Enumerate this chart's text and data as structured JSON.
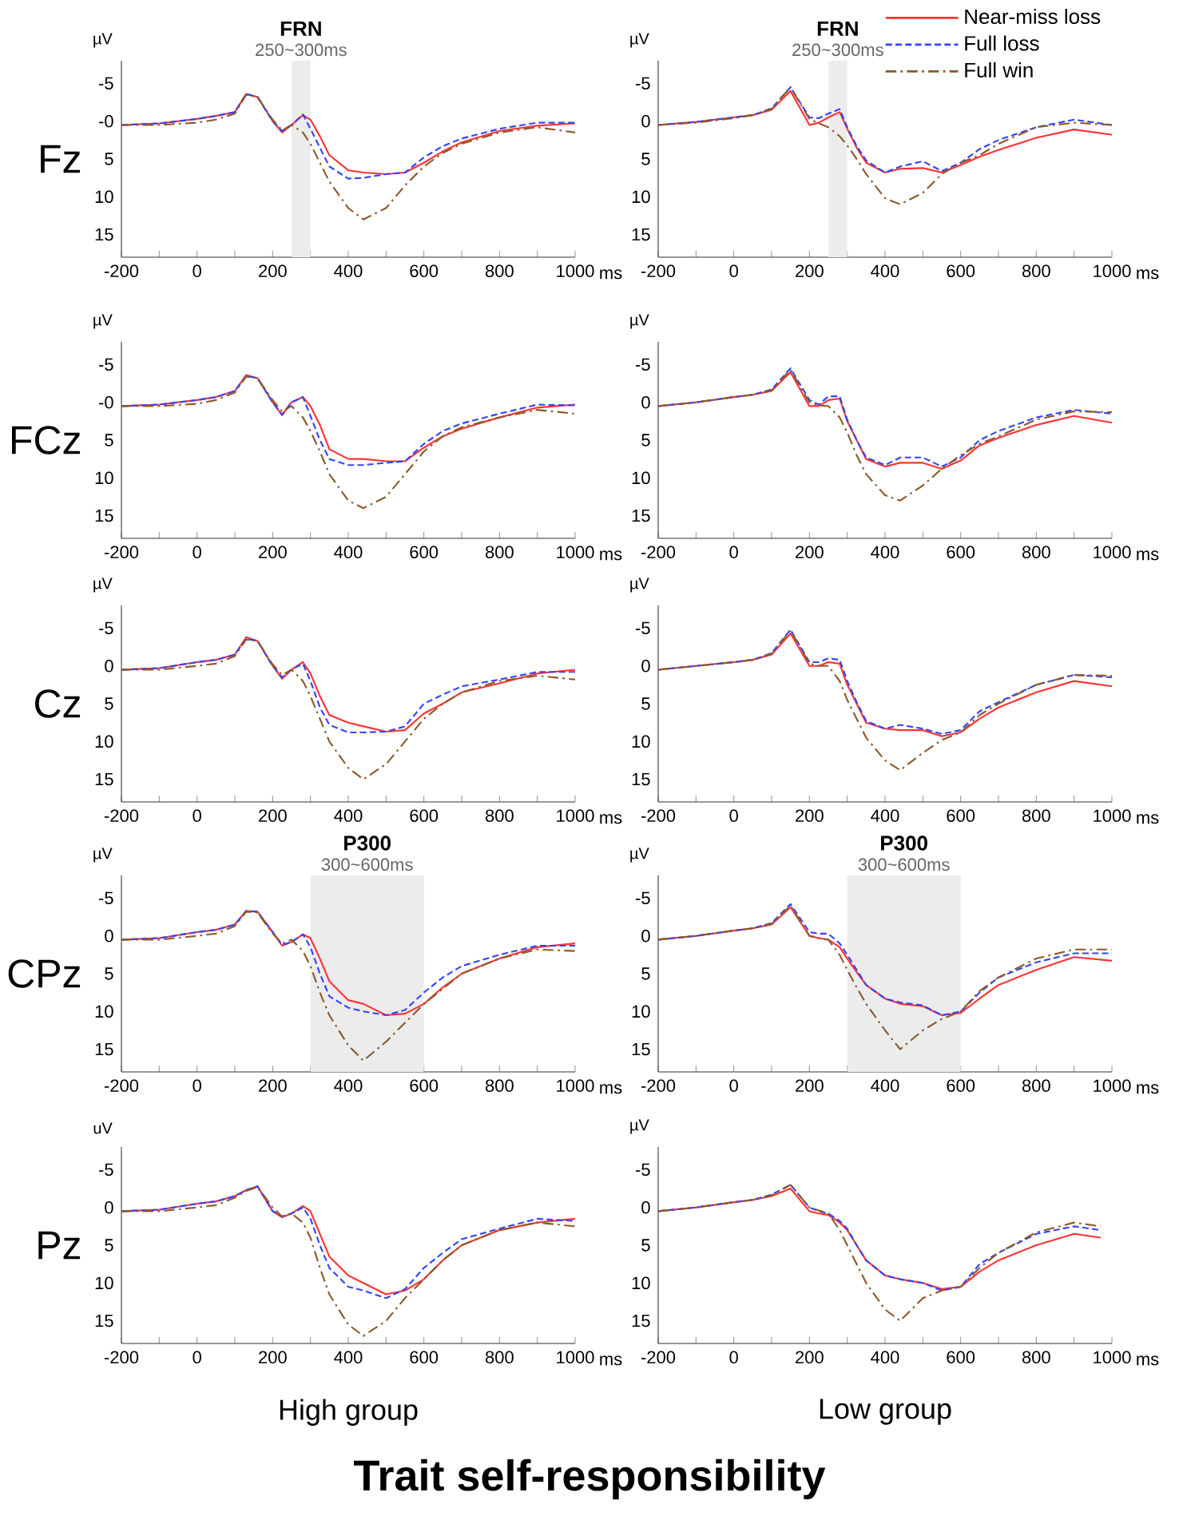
{
  "chart_data": [
    {
      "type": "line",
      "title": "Fz",
      "subtitle": "250~300ms",
      "xlabel": "ms",
      "ylabel": "µV",
      "xlim": [
        -200,
        1000
      ],
      "ylim": [
        18,
        -8
      ],
      "xticks": [
        -200,
        {
          "value": -100,
          "label": null
        },
        0,
        {
          "value": 100,
          "label": null
        },
        200,
        {
          "value": 300,
          "label": null
        },
        400,
        {
          "value": 500,
          "label": null
        },
        600,
        {
          "value": 700,
          "label": null
        },
        800,
        {
          "value": 900,
          "label": null
        },
        1000
      ],
      "yticks": [
        -5,
        {
          "value": 0,
          "label": "-0"
        },
        5,
        10,
        15
      ],
      "bands": [
        {
          "axis": "x",
          "from": 250,
          "to": 300,
          "label": "FRN",
          "color": "#ececec"
        }
      ],
      "x": [
        -200,
        -100,
        0,
        50,
        100,
        130,
        160,
        200,
        225,
        250,
        280,
        300,
        325,
        350,
        400,
        440,
        500,
        550,
        600,
        650,
        700,
        800,
        900,
        1000
      ],
      "series": [
        {
          "color": "#ff3333",
          "line_style": "solid",
          "values": [
            0.5,
            0.3,
            -0.3,
            -0.7,
            -1.2,
            -3.6,
            -3.2,
            0,
            1.5,
            0.5,
            -0.8,
            -0.2,
            2,
            4.5,
            6.5,
            6.8,
            7,
            6.8,
            5.5,
            4,
            2.8,
            1.3,
            0.6,
            0.3
          ]
        },
        {
          "color": "#3344ff",
          "line_style": "dashed",
          "values": [
            0.5,
            0.3,
            -0.3,
            -0.7,
            -1.2,
            -3.6,
            -3.2,
            0,
            1.3,
            0.5,
            -0.9,
            1,
            3.5,
            6,
            7.6,
            7.5,
            7,
            6.8,
            4.8,
            3.3,
            2.3,
            1,
            0.2,
            0.2
          ]
        },
        {
          "color": "#8b5a2b",
          "line_style": "dashdot",
          "values": [
            0.5,
            0.5,
            0.2,
            -0.2,
            -1,
            -3.5,
            -3.2,
            -0.2,
            1.2,
            0.5,
            1.5,
            3,
            5.5,
            8,
            11.5,
            13,
            11.5,
            8.5,
            6,
            4.2,
            3,
            1.5,
            0.8,
            1.5
          ]
        }
      ]
    },
    {
      "type": "line",
      "subtitle": "250~300ms",
      "xlabel": "ms",
      "ylabel": "µV",
      "xlim": [
        -200,
        1000
      ],
      "ylim": [
        18,
        -8
      ],
      "legend": "top right",
      "xticks": [
        -200,
        {
          "value": -100,
          "label": null
        },
        0,
        {
          "value": 100,
          "label": null
        },
        200,
        {
          "value": 300,
          "label": null
        },
        400,
        {
          "value": 500,
          "label": null
        },
        600,
        {
          "value": 700,
          "label": null
        },
        800,
        {
          "value": 900,
          "label": null
        },
        1000
      ],
      "yticks": [
        -5,
        0,
        5,
        10,
        15
      ],
      "bands": [
        {
          "axis": "x",
          "from": 250,
          "to": 300,
          "label": "FRN",
          "color": "#ececec"
        }
      ],
      "x": [
        -200,
        -100,
        0,
        50,
        100,
        150,
        200,
        225,
        250,
        280,
        300,
        325,
        350,
        400,
        440,
        500,
        550,
        600,
        650,
        700,
        800,
        900,
        1000
      ],
      "series": [
        {
          "name": "Near-miss loss",
          "color": "#ff3333",
          "line_style": "solid",
          "values": [
            0.5,
            0.1,
            -0.5,
            -0.8,
            -1.5,
            -4,
            0.5,
            0.2,
            -0.5,
            -1.2,
            1,
            3.5,
            5.5,
            6.8,
            6.3,
            6.2,
            6.8,
            5.8,
            4.7,
            3.8,
            2.2,
            1.1,
            1.8
          ]
        },
        {
          "name": "Full loss",
          "color": "#3344ff",
          "line_style": "dashed",
          "values": [
            0.5,
            0.1,
            -0.5,
            -0.8,
            -1.7,
            -4.5,
            -0.5,
            -0.4,
            -1,
            -1.6,
            0.8,
            3.3,
            5.2,
            6.8,
            6,
            5.3,
            6.6,
            5.5,
            3.7,
            2.5,
            0.8,
            -0.2,
            0.5
          ]
        },
        {
          "name": "Full win",
          "color": "#8b5a2b",
          "line_style": "dashdot",
          "values": [
            0.5,
            0.2,
            -0.4,
            -0.8,
            -1.6,
            -4.5,
            -0.3,
            0.3,
            0.8,
            2,
            3.2,
            5,
            7,
            10.2,
            11,
            9.5,
            7,
            5.5,
            4.5,
            3,
            0.8,
            0.2,
            0.5
          ]
        }
      ]
    },
    {
      "type": "line",
      "title": "FCz",
      "xlabel": "ms",
      "ylabel": "µV",
      "xlim": [
        -200,
        1000
      ],
      "ylim": [
        18,
        -8
      ],
      "xticks": [
        -200,
        {
          "value": -100,
          "label": null
        },
        0,
        {
          "value": 100,
          "label": null
        },
        200,
        {
          "value": 300,
          "label": null
        },
        400,
        {
          "value": 500,
          "label": null
        },
        600,
        {
          "value": 700,
          "label": null
        },
        800,
        {
          "value": 900,
          "label": null
        },
        1000
      ],
      "yticks": [
        -5,
        {
          "value": 0,
          "label": "-0"
        },
        5,
        10,
        15
      ],
      "x": [
        -200,
        -100,
        0,
        50,
        100,
        130,
        160,
        200,
        225,
        250,
        280,
        300,
        325,
        350,
        400,
        440,
        500,
        550,
        600,
        650,
        700,
        800,
        900,
        1000
      ],
      "series": [
        {
          "color": "#ff3333",
          "line_style": "solid",
          "values": [
            0.5,
            0.3,
            -0.3,
            -0.7,
            -1.5,
            -3.6,
            -3.2,
            0,
            1.7,
            0,
            -0.7,
            0.5,
            3,
            6.2,
            7.5,
            7.5,
            7.8,
            7.8,
            6,
            4.5,
            3.5,
            2,
            0.7,
            0.3
          ]
        },
        {
          "color": "#3344ff",
          "line_style": "dashed",
          "values": [
            0.5,
            0.3,
            -0.3,
            -0.7,
            -1.5,
            -3.5,
            -3.2,
            0,
            1.6,
            0,
            -0.7,
            1.8,
            5,
            7.5,
            8.3,
            8.3,
            8,
            7.8,
            5.5,
            3.8,
            2.8,
            1.5,
            0.3,
            0.4
          ]
        },
        {
          "color": "#8b5a2b",
          "line_style": "dashdot",
          "values": [
            0.5,
            0.5,
            0.2,
            -0.3,
            -1.3,
            -3.4,
            -3.2,
            -0.3,
            1.2,
            0.5,
            2,
            3.8,
            6.5,
            9.5,
            13,
            14,
            12.5,
            9.5,
            6.5,
            4.5,
            3.3,
            2,
            1,
            1.5
          ]
        }
      ]
    },
    {
      "type": "line",
      "xlabel": "ms",
      "ylabel": "µV",
      "xlim": [
        -200,
        1000
      ],
      "ylim": [
        18,
        -8
      ],
      "xticks": [
        -200,
        {
          "value": -100,
          "label": null
        },
        0,
        {
          "value": 100,
          "label": null
        },
        200,
        {
          "value": 300,
          "label": null
        },
        400,
        {
          "value": 500,
          "label": null
        },
        600,
        {
          "value": 700,
          "label": null
        },
        800,
        {
          "value": 900,
          "label": null
        },
        1000
      ],
      "yticks": [
        -5,
        0,
        5,
        10,
        15
      ],
      "x": [
        -200,
        -100,
        0,
        50,
        100,
        150,
        200,
        225,
        250,
        280,
        300,
        325,
        350,
        400,
        440,
        500,
        550,
        600,
        650,
        700,
        800,
        900,
        1000
      ],
      "series": [
        {
          "color": "#ff3333",
          "line_style": "solid",
          "values": [
            0.5,
            0,
            -0.7,
            -1,
            -1.5,
            -4,
            0.5,
            0.5,
            -0.3,
            -0.5,
            2.5,
            5,
            7.5,
            8.5,
            8,
            8,
            8.8,
            7.7,
            5.7,
            4.7,
            3,
            1.8,
            2.7
          ]
        },
        {
          "color": "#3344ff",
          "line_style": "dashed",
          "values": [
            0.5,
            0,
            -0.7,
            -1,
            -1.7,
            -4.5,
            -0.3,
            0.3,
            -0.8,
            -0.8,
            2.3,
            5,
            7.3,
            8.3,
            7.3,
            7.3,
            8.5,
            7.3,
            5,
            3.8,
            2,
            1,
            1.5
          ]
        },
        {
          "color": "#8b5a2b",
          "line_style": "dashdot",
          "values": [
            0.5,
            0,
            -0.7,
            -1,
            -1.6,
            -4.3,
            0,
            0.4,
            0.5,
            2,
            4,
            7,
            9.5,
            12.3,
            13,
            11,
            8.8,
            7,
            5.5,
            4.5,
            2.3,
            1.2,
            1.3
          ]
        }
      ]
    },
    {
      "type": "line",
      "title": "Cz",
      "xlabel": "ms",
      "ylabel": "µV",
      "xlim": [
        -200,
        1000
      ],
      "ylim": [
        18,
        -8
      ],
      "xticks": [
        -200,
        {
          "value": -100,
          "label": null
        },
        0,
        {
          "value": 100,
          "label": null
        },
        200,
        {
          "value": 300,
          "label": null
        },
        400,
        {
          "value": 500,
          "label": null
        },
        600,
        {
          "value": 700,
          "label": null
        },
        800,
        {
          "value": 900,
          "label": null
        },
        1000
      ],
      "yticks": [
        -5,
        0,
        5,
        10,
        15
      ],
      "x": [
        -200,
        -100,
        0,
        50,
        100,
        130,
        160,
        200,
        225,
        250,
        280,
        300,
        325,
        350,
        400,
        440,
        500,
        550,
        600,
        650,
        700,
        800,
        900,
        1000
      ],
      "series": [
        {
          "color": "#ff3333",
          "line_style": "solid",
          "values": [
            0.5,
            0.3,
            -0.5,
            -0.8,
            -1.5,
            -3.8,
            -3.3,
            0,
            1.7,
            0.5,
            -0.5,
            1,
            4,
            6.5,
            7.5,
            8,
            8.7,
            8.5,
            6.3,
            5,
            3.5,
            2.3,
            1,
            0.5
          ]
        },
        {
          "color": "#3344ff",
          "line_style": "dashed",
          "values": [
            0.5,
            0.3,
            -0.5,
            -0.8,
            -1.5,
            -3.6,
            -3.3,
            0,
            1.5,
            0.5,
            -0.3,
            2,
            5.5,
            7.8,
            8.8,
            8.8,
            8.7,
            8,
            5,
            3.8,
            2.7,
            1.8,
            0.8,
            0.8
          ]
        },
        {
          "color": "#8b5a2b",
          "line_style": "dashdot",
          "values": [
            0.5,
            0.5,
            0,
            -0.3,
            -1.3,
            -3.5,
            -3.3,
            -0.2,
            1.2,
            0.5,
            2,
            4,
            7,
            10,
            13.5,
            15,
            13,
            10,
            7,
            5,
            3.5,
            2,
            1.3,
            1.8
          ]
        }
      ]
    },
    {
      "type": "line",
      "xlabel": "ms",
      "ylabel": "µV",
      "xlim": [
        -200,
        1000
      ],
      "ylim": [
        18,
        -8
      ],
      "xticks": [
        -200,
        {
          "value": -100,
          "label": null
        },
        0,
        {
          "value": 100,
          "label": null
        },
        200,
        {
          "value": 300,
          "label": null
        },
        400,
        {
          "value": 500,
          "label": null
        },
        600,
        {
          "value": 700,
          "label": null
        },
        800,
        {
          "value": 900,
          "label": null
        },
        1000
      ],
      "yticks": [
        -5,
        0,
        5,
        10,
        15
      ],
      "x": [
        -200,
        -100,
        0,
        50,
        100,
        150,
        200,
        225,
        250,
        280,
        300,
        325,
        350,
        400,
        440,
        500,
        550,
        600,
        650,
        700,
        800,
        900,
        1000
      ],
      "series": [
        {
          "color": "#ff3333",
          "line_style": "solid",
          "values": [
            0.5,
            0,
            -0.5,
            -0.8,
            -1.5,
            -4.3,
            0,
            0,
            -0.5,
            -0.3,
            2.5,
            5,
            7.5,
            8.3,
            8.5,
            8.5,
            9.3,
            8.8,
            7,
            5.5,
            3.5,
            2,
            2.7
          ]
        },
        {
          "color": "#3344ff",
          "line_style": "dashed",
          "values": [
            0.5,
            0,
            -0.5,
            -0.8,
            -1.7,
            -4.8,
            -0.5,
            -0.5,
            -1,
            -0.8,
            2,
            4.8,
            7.3,
            8.3,
            7.8,
            8.3,
            9,
            8.5,
            6,
            4.8,
            2.5,
            1.2,
            1.5
          ]
        },
        {
          "color": "#8b5a2b",
          "line_style": "dashdot",
          "values": [
            0.5,
            0,
            -0.5,
            -0.8,
            -1.6,
            -4.7,
            -0.3,
            0,
            0,
            2,
            4.5,
            7,
            9.5,
            12.5,
            13.8,
            11.5,
            9.8,
            8.8,
            6.5,
            5,
            2.5,
            1.2,
            1.3
          ]
        }
      ]
    },
    {
      "type": "line",
      "title": "CPz",
      "subtitle": "300~600ms",
      "xlabel": "ms",
      "ylabel": "µV",
      "xlim": [
        -200,
        1000
      ],
      "ylim": [
        18,
        -8
      ],
      "xticks": [
        -200,
        {
          "value": -100,
          "label": null
        },
        0,
        {
          "value": 100,
          "label": null
        },
        200,
        {
          "value": 300,
          "label": null
        },
        400,
        {
          "value": 500,
          "label": null
        },
        600,
        {
          "value": 700,
          "label": null
        },
        800,
        {
          "value": 900,
          "label": null
        },
        1000
      ],
      "yticks": [
        -5,
        0,
        5,
        10,
        15
      ],
      "bands": [
        {
          "axis": "x",
          "from": 300,
          "to": 600,
          "label": "P300",
          "color": "#ececec"
        }
      ],
      "x": [
        -200,
        -100,
        0,
        50,
        100,
        130,
        160,
        200,
        225,
        250,
        280,
        300,
        325,
        350,
        400,
        440,
        500,
        550,
        600,
        650,
        700,
        800,
        900,
        1000
      ],
      "series": [
        {
          "color": "#ff3333",
          "line_style": "solid",
          "values": [
            0.5,
            0.3,
            -0.5,
            -0.8,
            -1.5,
            -3.3,
            -3.2,
            -0.5,
            1.3,
            0.8,
            -0.2,
            0.3,
            3,
            6,
            8.5,
            9,
            10.5,
            10.3,
            9,
            6.8,
            5,
            3,
            1.5,
            1
          ]
        },
        {
          "color": "#3344ff",
          "line_style": "dashed",
          "values": [
            0.5,
            0.3,
            -0.5,
            -0.8,
            -1.5,
            -3.3,
            -3.2,
            -0.5,
            1.2,
            0.8,
            -0.2,
            1.5,
            5,
            8,
            9.5,
            10,
            10.5,
            9.8,
            7.5,
            5.5,
            4,
            2.5,
            1.3,
            1.3
          ]
        },
        {
          "color": "#8b5a2b",
          "line_style": "dashdot",
          "values": [
            0.5,
            0.5,
            0,
            -0.3,
            -1.3,
            -3.2,
            -3.1,
            -0.3,
            1,
            0.5,
            2,
            4,
            7.5,
            10.5,
            14.5,
            16.5,
            14,
            11.5,
            9,
            7,
            5,
            3,
            1.8,
            2
          ]
        }
      ]
    },
    {
      "type": "line",
      "subtitle": "300~600ms",
      "xlabel": "ms",
      "ylabel": "µV",
      "xlim": [
        -200,
        1000
      ],
      "ylim": [
        18,
        -8
      ],
      "xticks": [
        -200,
        {
          "value": -100,
          "label": null
        },
        0,
        {
          "value": 100,
          "label": null
        },
        200,
        {
          "value": 300,
          "label": null
        },
        400,
        {
          "value": 500,
          "label": null
        },
        600,
        {
          "value": 700,
          "label": null
        },
        800,
        {
          "value": 900,
          "label": null
        },
        1000
      ],
      "yticks": [
        -5,
        0,
        5,
        10,
        15
      ],
      "bands": [
        {
          "axis": "x",
          "from": 300,
          "to": 600,
          "label": "P300",
          "color": "#ececec"
        }
      ],
      "x": [
        -200,
        -100,
        0,
        50,
        100,
        150,
        200,
        225,
        250,
        280,
        300,
        325,
        350,
        400,
        440,
        500,
        550,
        600,
        650,
        700,
        800,
        900,
        1000
      ],
      "series": [
        {
          "color": "#ff3333",
          "line_style": "solid",
          "values": [
            0.5,
            0,
            -0.7,
            -1,
            -1.5,
            -3.8,
            0,
            0.3,
            0.5,
            1.5,
            3,
            4.8,
            6.5,
            8.3,
            9,
            9.3,
            10.5,
            10.2,
            8.3,
            6.5,
            4.5,
            2.8,
            3.3
          ]
        },
        {
          "color": "#3344ff",
          "line_style": "dashed",
          "values": [
            0.5,
            0,
            -0.7,
            -1,
            -1.7,
            -4.2,
            -0.5,
            -0.3,
            -0.3,
            1,
            2.5,
            4.5,
            6.5,
            8.3,
            8.8,
            9.2,
            10.5,
            10,
            7.5,
            5.5,
            3.5,
            2.3,
            2.3
          ]
        },
        {
          "color": "#8b5a2b",
          "line_style": "dashdot",
          "values": [
            0.5,
            0,
            -0.7,
            -1,
            -1.6,
            -4,
            0,
            0.3,
            0.5,
            2.5,
            4.5,
            6.8,
            9,
            12.5,
            15,
            12.5,
            11,
            10,
            7.3,
            5.5,
            3,
            1.8,
            1.8
          ]
        }
      ]
    },
    {
      "type": "line",
      "title": "Pz",
      "xlabel": "ms",
      "ylabel": "uV",
      "annotations": [
        "High group"
      ],
      "xlim": [
        -200,
        1000
      ],
      "ylim": [
        18,
        -8
      ],
      "xticks": [
        -200,
        {
          "value": -100,
          "label": null
        },
        0,
        {
          "value": 100,
          "label": null
        },
        200,
        {
          "value": 300,
          "label": null
        },
        400,
        {
          "value": 500,
          "label": null
        },
        600,
        {
          "value": 700,
          "label": null
        },
        800,
        {
          "value": 900,
          "label": null
        },
        1000
      ],
      "yticks": [
        -5,
        0,
        5,
        10,
        15
      ],
      "x": [
        -200,
        -100,
        0,
        50,
        100,
        130,
        160,
        200,
        225,
        250,
        280,
        300,
        325,
        350,
        400,
        440,
        500,
        550,
        600,
        650,
        700,
        800,
        900,
        1000
      ],
      "series": [
        {
          "color": "#ff3333",
          "line_style": "solid",
          "values": [
            0.5,
            0.3,
            -0.5,
            -0.8,
            -1.5,
            -2.3,
            -2.8,
            0.5,
            1.3,
            0.8,
            -0.2,
            0.5,
            3.5,
            6.5,
            9,
            10,
            11.5,
            11,
            9.5,
            7,
            5,
            3,
            2,
            1.5
          ]
        },
        {
          "color": "#3344ff",
          "line_style": "dashed",
          "values": [
            0.5,
            0.3,
            -0.5,
            -0.8,
            -1.5,
            -2.3,
            -2.8,
            0.5,
            1.2,
            0.8,
            0,
            1.5,
            5,
            8,
            10.5,
            11,
            12,
            10.8,
            8,
            6,
            4.2,
            2.8,
            1.5,
            1.8
          ]
        },
        {
          "color": "#8b5a2b",
          "line_style": "dashdot",
          "values": [
            0.5,
            0.5,
            0,
            -0.3,
            -1.3,
            -2.2,
            -2.7,
            0,
            1.2,
            0.8,
            2,
            4,
            8,
            11.5,
            15.5,
            17,
            15,
            12,
            9.5,
            7,
            5,
            3,
            2,
            2.5
          ]
        }
      ]
    },
    {
      "type": "line",
      "xlabel": "ms",
      "ylabel": "µV",
      "annotations": [
        "Low group"
      ],
      "xlim": [
        -200,
        1000
      ],
      "ylim": [
        18,
        -8
      ],
      "xticks": [
        -200,
        {
          "value": -100,
          "label": null
        },
        0,
        {
          "value": 100,
          "label": null
        },
        200,
        {
          "value": 300,
          "label": null
        },
        400,
        {
          "value": 500,
          "label": null
        },
        600,
        {
          "value": 700,
          "label": null
        },
        800,
        {
          "value": 900,
          "label": null
        },
        1000
      ],
      "yticks": [
        -5,
        0,
        5,
        10,
        15
      ],
      "x": [
        -200,
        -100,
        0,
        50,
        100,
        150,
        200,
        225,
        250,
        280,
        300,
        325,
        350,
        400,
        440,
        500,
        550,
        600,
        650,
        700,
        800,
        900,
        970
      ],
      "series": [
        {
          "color": "#ff3333",
          "line_style": "solid",
          "values": [
            0.5,
            0,
            -0.7,
            -1,
            -1.5,
            -2.5,
            0.5,
            0.8,
            1,
            2,
            3,
            5,
            7,
            9,
            9.5,
            10,
            10.8,
            10.5,
            8.5,
            7,
            5,
            3.5,
            4
          ]
        },
        {
          "color": "#3344ff",
          "line_style": "dashed",
          "values": [
            0.5,
            0,
            -0.7,
            -1,
            -1.7,
            -3,
            0,
            0.5,
            0.8,
            1.8,
            2.8,
            5,
            7,
            9,
            9.5,
            10,
            11,
            10.5,
            7.5,
            6,
            3.5,
            2.5,
            3
          ]
        },
        {
          "color": "#8b5a2b",
          "line_style": "dashdot",
          "values": [
            0.5,
            0,
            -0.7,
            -1,
            -1.6,
            -3,
            0,
            0.4,
            0.8,
            3,
            5,
            7.5,
            10,
            13.5,
            15,
            12,
            11,
            10.5,
            8,
            6,
            3.3,
            2,
            2.5
          ]
        }
      ]
    },
    {
      "type": "other",
      "title": "Trait self-responsibility"
    }
  ]
}
